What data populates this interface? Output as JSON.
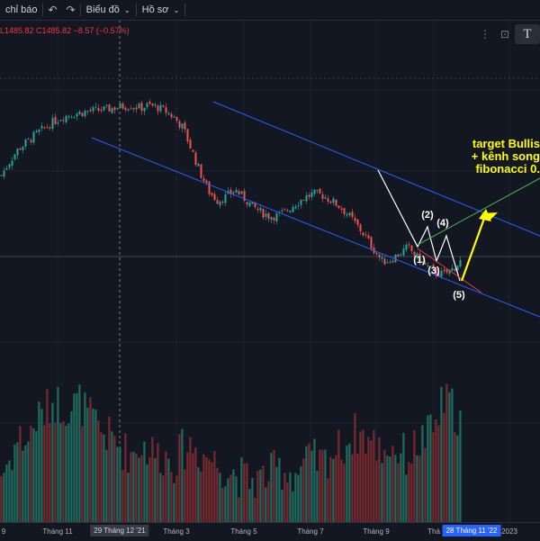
{
  "toolbar": {
    "indicators_label": "chỉ báo",
    "undo_icon": "undo-icon",
    "redo_icon": "redo-icon",
    "chart_label": "Biểu đồ",
    "profile_label": "Hồ sơ"
  },
  "legend": {
    "ohlc_text": "L1485.82  C1485.82  −8.57 (−0.57%)"
  },
  "right_tools": {
    "T_label": "T"
  },
  "annotations": {
    "line1": "target Bullis",
    "line2": "+ kênh song",
    "line3": "fibonacci 0."
  },
  "waves": [
    "(1)",
    "(2)",
    "(3)",
    "(4)",
    "(5)"
  ],
  "xaxis": {
    "ticks": [
      "9",
      "Tháng 11",
      "Tháng 3",
      "Tháng 5",
      "Tháng 7",
      "Tháng 9",
      "Thá",
      "2023"
    ],
    "crosshair_date": "29 Tháng 12 '21",
    "current_date": "28 Tháng 11 '22"
  },
  "colors": {
    "up": "#26a69a",
    "down": "#ef5350",
    "channel": "#2962ff",
    "annotation": "#ffff00"
  },
  "chart_data": {
    "type": "candlestick",
    "close_series": [
      1330,
      1365,
      1395,
      1412,
      1430,
      1445,
      1460,
      1472,
      1478,
      1482,
      1486,
      1488,
      1490,
      1494,
      1498,
      1500,
      1494,
      1500,
      1496,
      1485,
      1470,
      1445,
      1390,
      1335,
      1290,
      1268,
      1278,
      1295,
      1275,
      1255,
      1240,
      1230,
      1232,
      1245,
      1262,
      1276,
      1285,
      1282,
      1270,
      1255,
      1235,
      1210,
      1182,
      1150,
      1120,
      1125,
      1140,
      1155,
      1130,
      1110,
      1095,
      1088,
      1100,
      1120
    ],
    "volume_relative": [
      0.2,
      0.26,
      0.35,
      0.33,
      0.42,
      0.45,
      0.5,
      0.48,
      0.47,
      0.5,
      0.44,
      0.4,
      0.36,
      0.34,
      0.3,
      0.28,
      0.32,
      0.3,
      0.28,
      0.27,
      0.25,
      0.3,
      0.32,
      0.28,
      0.27,
      0.24,
      0.22,
      0.2,
      0.18,
      0.17,
      0.18,
      0.2,
      0.22,
      0.21,
      0.2,
      0.24,
      0.26,
      0.24,
      0.28,
      0.3,
      0.33,
      0.37,
      0.35,
      0.32,
      0.3,
      0.31,
      0.29,
      0.27,
      0.32,
      0.35,
      0.38,
      0.5,
      0.48,
      0.42
    ]
  }
}
